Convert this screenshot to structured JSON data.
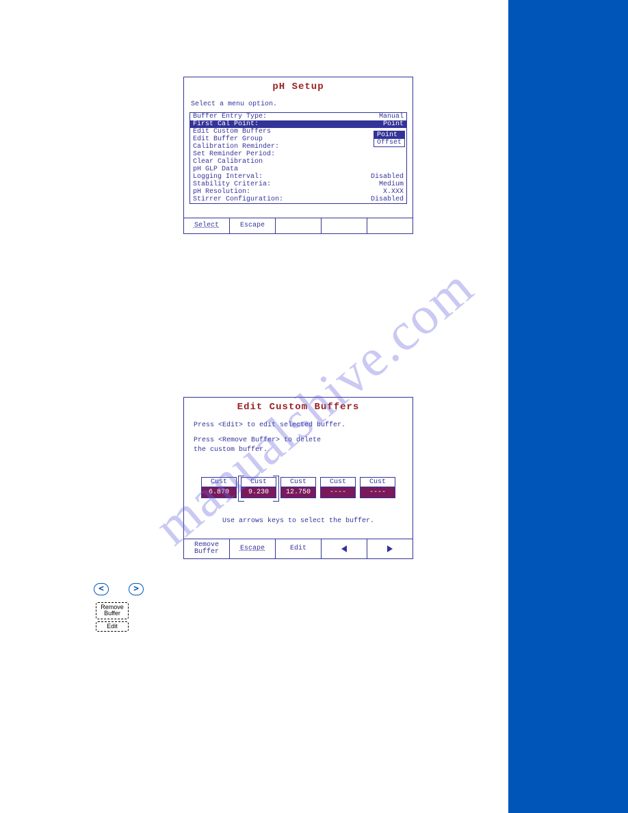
{
  "watermark": "manualshive.com",
  "screen1": {
    "title": "pH Setup",
    "subtitle": "Select a menu option.",
    "rows": [
      {
        "label": "Buffer Entry Type:",
        "value": "Manual",
        "selected": false
      },
      {
        "label": "First Cal Point:",
        "value": "Point",
        "selected": true
      },
      {
        "label": "Edit Custom Buffers",
        "value": "",
        "selected": false
      },
      {
        "label": "Edit Buffer Group",
        "value": "",
        "selected": false
      },
      {
        "label": "Calibration Reminder:",
        "value": "",
        "selected": false
      },
      {
        "label": "Set Reminder Period:",
        "value": "",
        "selected": false
      },
      {
        "label": "Clear Calibration",
        "value": "",
        "selected": false
      },
      {
        "label": "pH GLP Data",
        "value": "",
        "selected": false
      },
      {
        "label": "Logging Interval:",
        "value": "Disabled",
        "selected": false
      },
      {
        "label": "Stability Criteria:",
        "value": "Medium",
        "selected": false
      },
      {
        "label": "pH Resolution:",
        "value": "X.XXX",
        "selected": false
      },
      {
        "label": "Stirrer Configuration:",
        "value": "Disabled",
        "selected": false
      }
    ],
    "popup": {
      "opt1": "Point",
      "opt2": "Offset",
      "selected": 0
    },
    "softkeys": [
      "Select",
      "Escape",
      "",
      "",
      ""
    ]
  },
  "screen2": {
    "title": "Edit Custom Buffers",
    "line1": "Press <Edit> to edit selected buffer.",
    "line2": "Press <Remove Buffer> to delete",
    "line3": "the custom buffer.",
    "hint": "Use arrows keys to select the buffer.",
    "buffers": [
      {
        "top": "Cust",
        "bot": "6.870",
        "selected": false
      },
      {
        "top": "Cust",
        "bot": "9.230",
        "selected": true
      },
      {
        "top": "Cust",
        "bot": "12.750",
        "selected": false
      },
      {
        "top": "Cust",
        "bot": "----",
        "selected": false
      },
      {
        "top": "Cust",
        "bot": "----",
        "selected": false
      }
    ],
    "softkeys": [
      "Remove\nBuffer",
      "Escape",
      "Edit",
      "◁",
      "▷"
    ]
  },
  "ext_buttons": {
    "left": "<",
    "right": ">",
    "remove": "Remove\nBuffer",
    "edit": "Edit"
  },
  "colors": {
    "ui_blue": "#333399",
    "title_red": "#992222",
    "sidebar_blue": "#0056b8",
    "buffer_fill": "#7a1a5a",
    "watermark": "rgba(100,100,220,0.35)"
  }
}
